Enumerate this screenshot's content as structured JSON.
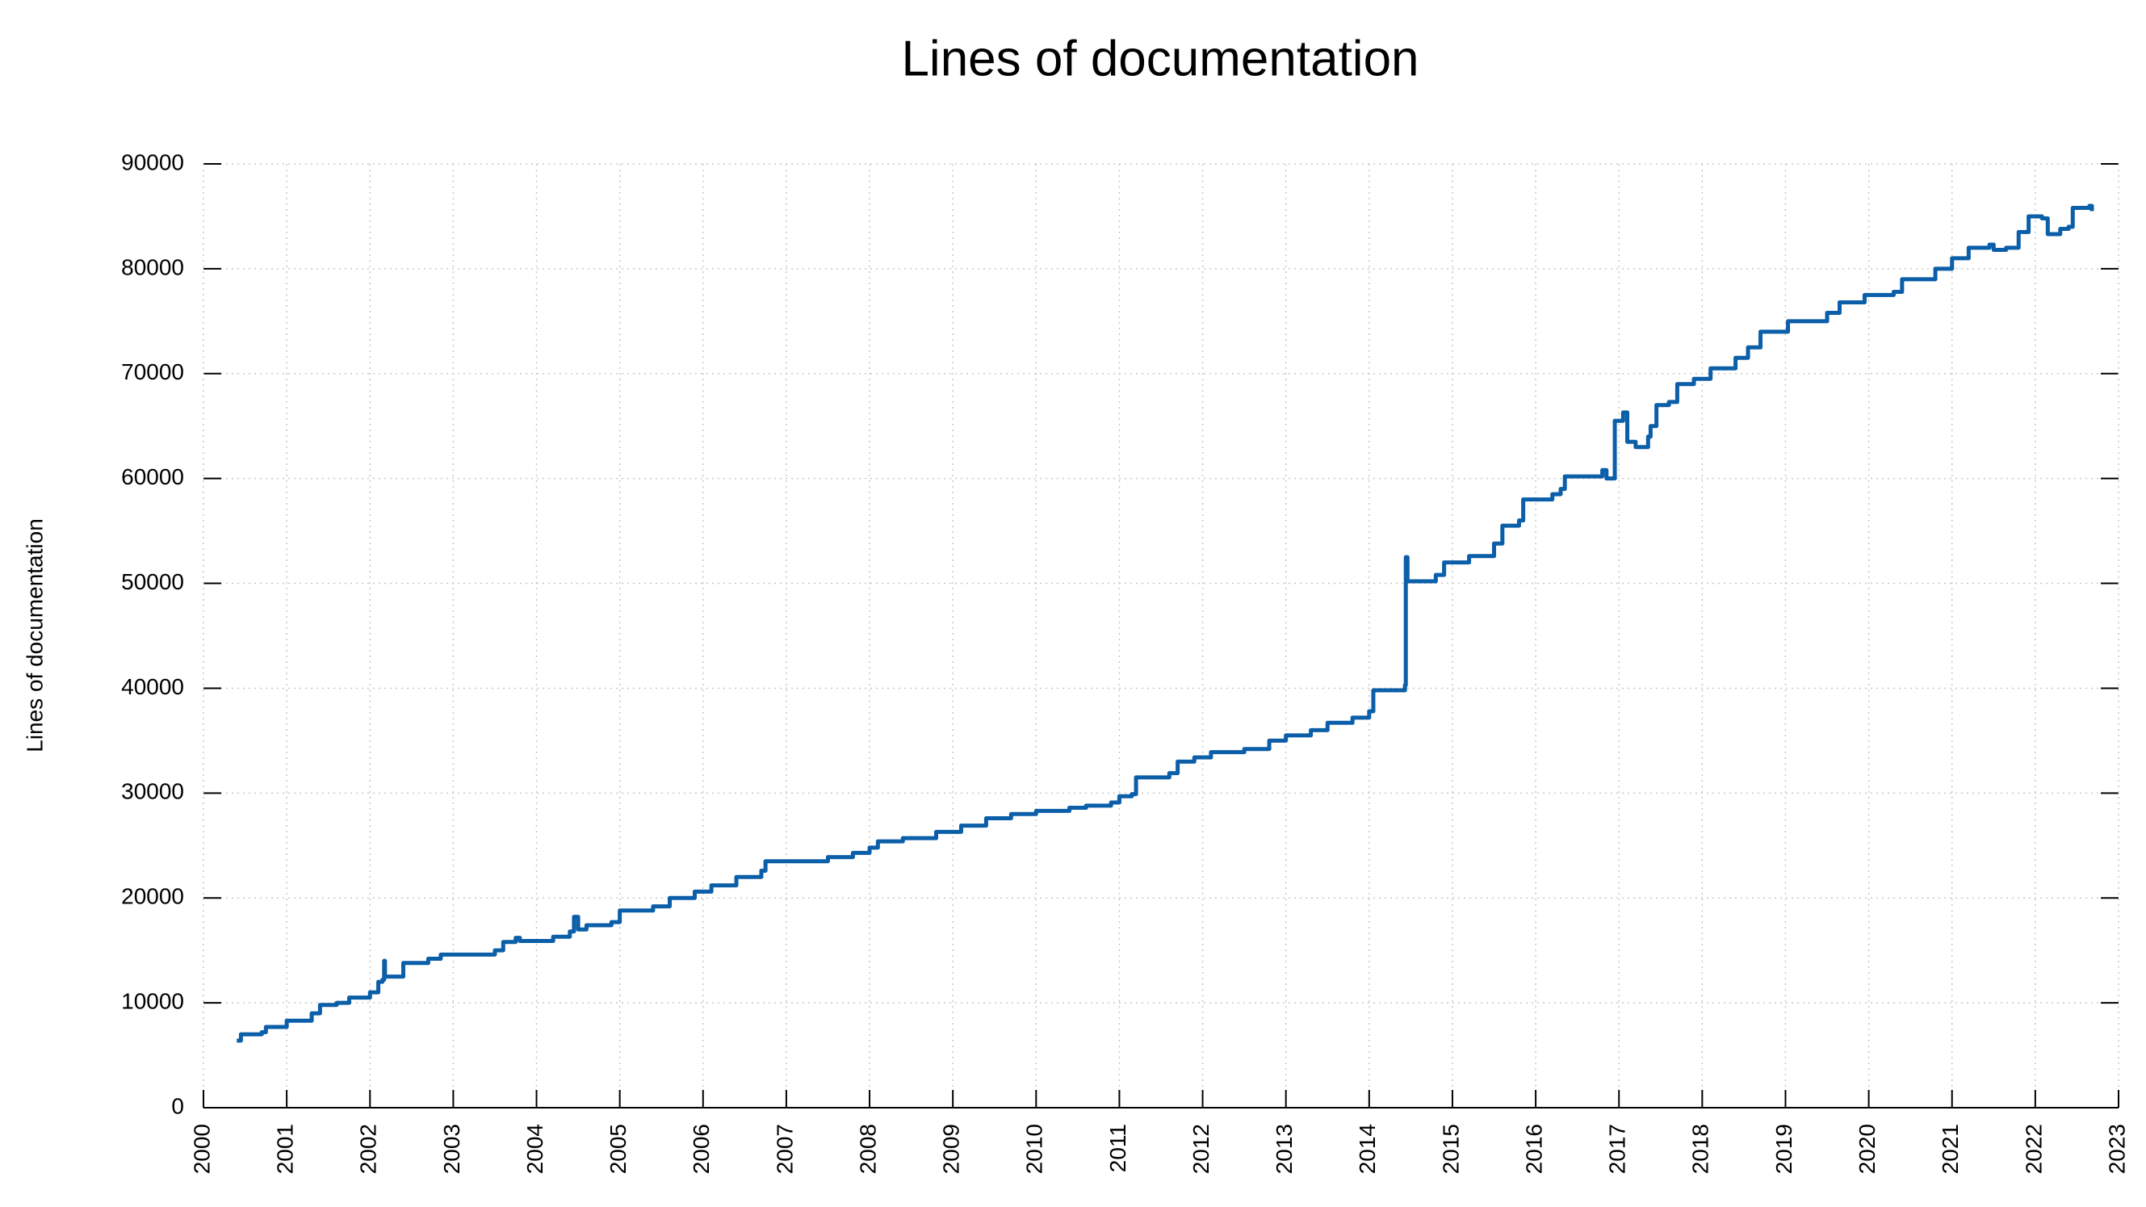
{
  "chart_data": {
    "type": "line",
    "title": "Lines of documentation",
    "y_label": "Lines of documentation",
    "xlim": [
      2000,
      2023
    ],
    "xticks": [
      2000,
      2001,
      2002,
      2003,
      2004,
      2005,
      2006,
      2007,
      2008,
      2009,
      2010,
      2011,
      2012,
      2013,
      2014,
      2015,
      2016,
      2017,
      2018,
      2019,
      2020,
      2021,
      2022,
      2023
    ],
    "ylim": [
      0,
      90000
    ],
    "yticks": [
      0,
      10000,
      20000,
      30000,
      40000,
      50000,
      60000,
      70000,
      80000,
      90000
    ],
    "grid": true,
    "x": [
      2000.4,
      2000.45,
      2000.7,
      2000.75,
      2001.0,
      2001.3,
      2001.4,
      2001.6,
      2001.75,
      2002.0,
      2002.1,
      2002.15,
      2002.17,
      2002.18,
      2002.4,
      2002.7,
      2002.85,
      2003.5,
      2003.6,
      2003.75,
      2003.8,
      2004.2,
      2004.4,
      2004.45,
      2004.5,
      2004.6,
      2004.9,
      2005.0,
      2005.4,
      2005.6,
      2005.9,
      2006.1,
      2006.4,
      2006.7,
      2006.75,
      2007.5,
      2007.8,
      2008.0,
      2008.1,
      2008.4,
      2008.8,
      2009.1,
      2009.4,
      2009.7,
      2010.0,
      2010.4,
      2010.6,
      2010.9,
      2011.0,
      2011.15,
      2011.2,
      2011.6,
      2011.7,
      2011.9,
      2012.1,
      2012.5,
      2012.8,
      2013.0,
      2013.3,
      2013.5,
      2013.8,
      2014.0,
      2014.05,
      2014.43,
      2014.44,
      2014.46,
      2014.8,
      2014.9,
      2015.2,
      2015.5,
      2015.6,
      2015.8,
      2015.85,
      2016.2,
      2016.3,
      2016.35,
      2016.8,
      2016.85,
      2016.9,
      2016.95,
      2017.05,
      2017.1,
      2017.2,
      2017.35,
      2017.38,
      2017.45,
      2017.6,
      2017.7,
      2017.9,
      2018.1,
      2018.4,
      2018.55,
      2018.7,
      2019.03,
      2019.5,
      2019.65,
      2019.95,
      2020.3,
      2020.4,
      2020.8,
      2021.0,
      2021.2,
      2021.45,
      2021.5,
      2021.65,
      2021.8,
      2021.92,
      2022.08,
      2022.15,
      2022.3,
      2022.4,
      2022.45,
      2022.65,
      2022.68
    ],
    "series": [
      {
        "name": "Lines of documentation",
        "color": "#0b5ea8",
        "values": [
          6400,
          7000,
          7200,
          7700,
          8300,
          9000,
          9800,
          10000,
          10500,
          11000,
          12000,
          12200,
          14000,
          12500,
          13800,
          14200,
          14600,
          15000,
          15800,
          16200,
          15900,
          16300,
          16800,
          18200,
          17000,
          17400,
          17700,
          18800,
          19200,
          20000,
          20600,
          21200,
          22000,
          22600,
          23500,
          23900,
          24300,
          24800,
          25400,
          25700,
          26300,
          26900,
          27600,
          28000,
          28300,
          28600,
          28800,
          29100,
          29700,
          29900,
          31500,
          31900,
          33000,
          33400,
          33900,
          34200,
          35000,
          35500,
          36000,
          36700,
          37200,
          37800,
          39800,
          40300,
          52500,
          50200,
          50800,
          52000,
          52600,
          53800,
          55500,
          56000,
          58000,
          58500,
          59000,
          60200,
          60800,
          60000,
          60000,
          65500,
          66300,
          63500,
          63000,
          64000,
          65000,
          67000,
          67300,
          69000,
          69500,
          70500,
          71500,
          72500,
          74000,
          75000,
          75800,
          76800,
          77500,
          77800,
          79000,
          80000,
          81000,
          82000,
          82300,
          81800,
          82000,
          83500,
          85000,
          84800,
          83300,
          83800,
          84000,
          85800,
          86000,
          85500
        ]
      }
    ]
  }
}
